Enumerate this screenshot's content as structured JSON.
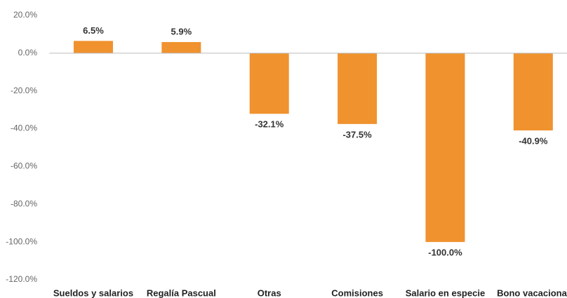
{
  "chart_data": {
    "type": "bar",
    "categories": [
      "Sueldos y salarios",
      "Regalía Pascual",
      "Otras",
      "Comisiones",
      "Salario en especie",
      "Bono vacacional"
    ],
    "values": [
      6.5,
      5.9,
      -32.1,
      -37.5,
      -100.0,
      -40.9
    ],
    "value_labels": [
      "6.5%",
      "5.9%",
      "-32.1%",
      "-37.5%",
      "-100.0%",
      "-40.9%"
    ],
    "color": "#f0922e",
    "ylim": [
      -120,
      20
    ],
    "yticks": [
      {
        "value": 20,
        "label": "20.0%"
      },
      {
        "value": 0,
        "label": "0.0%"
      },
      {
        "value": -20,
        "label": "-20.0%"
      },
      {
        "value": -40,
        "label": "-40.0%"
      },
      {
        "value": -60,
        "label": "-60.0%"
      },
      {
        "value": -80,
        "label": "-80.0%"
      },
      {
        "value": -100,
        "label": "-100.0%"
      },
      {
        "value": -120,
        "label": "-120.0%"
      }
    ],
    "grid": false
  }
}
